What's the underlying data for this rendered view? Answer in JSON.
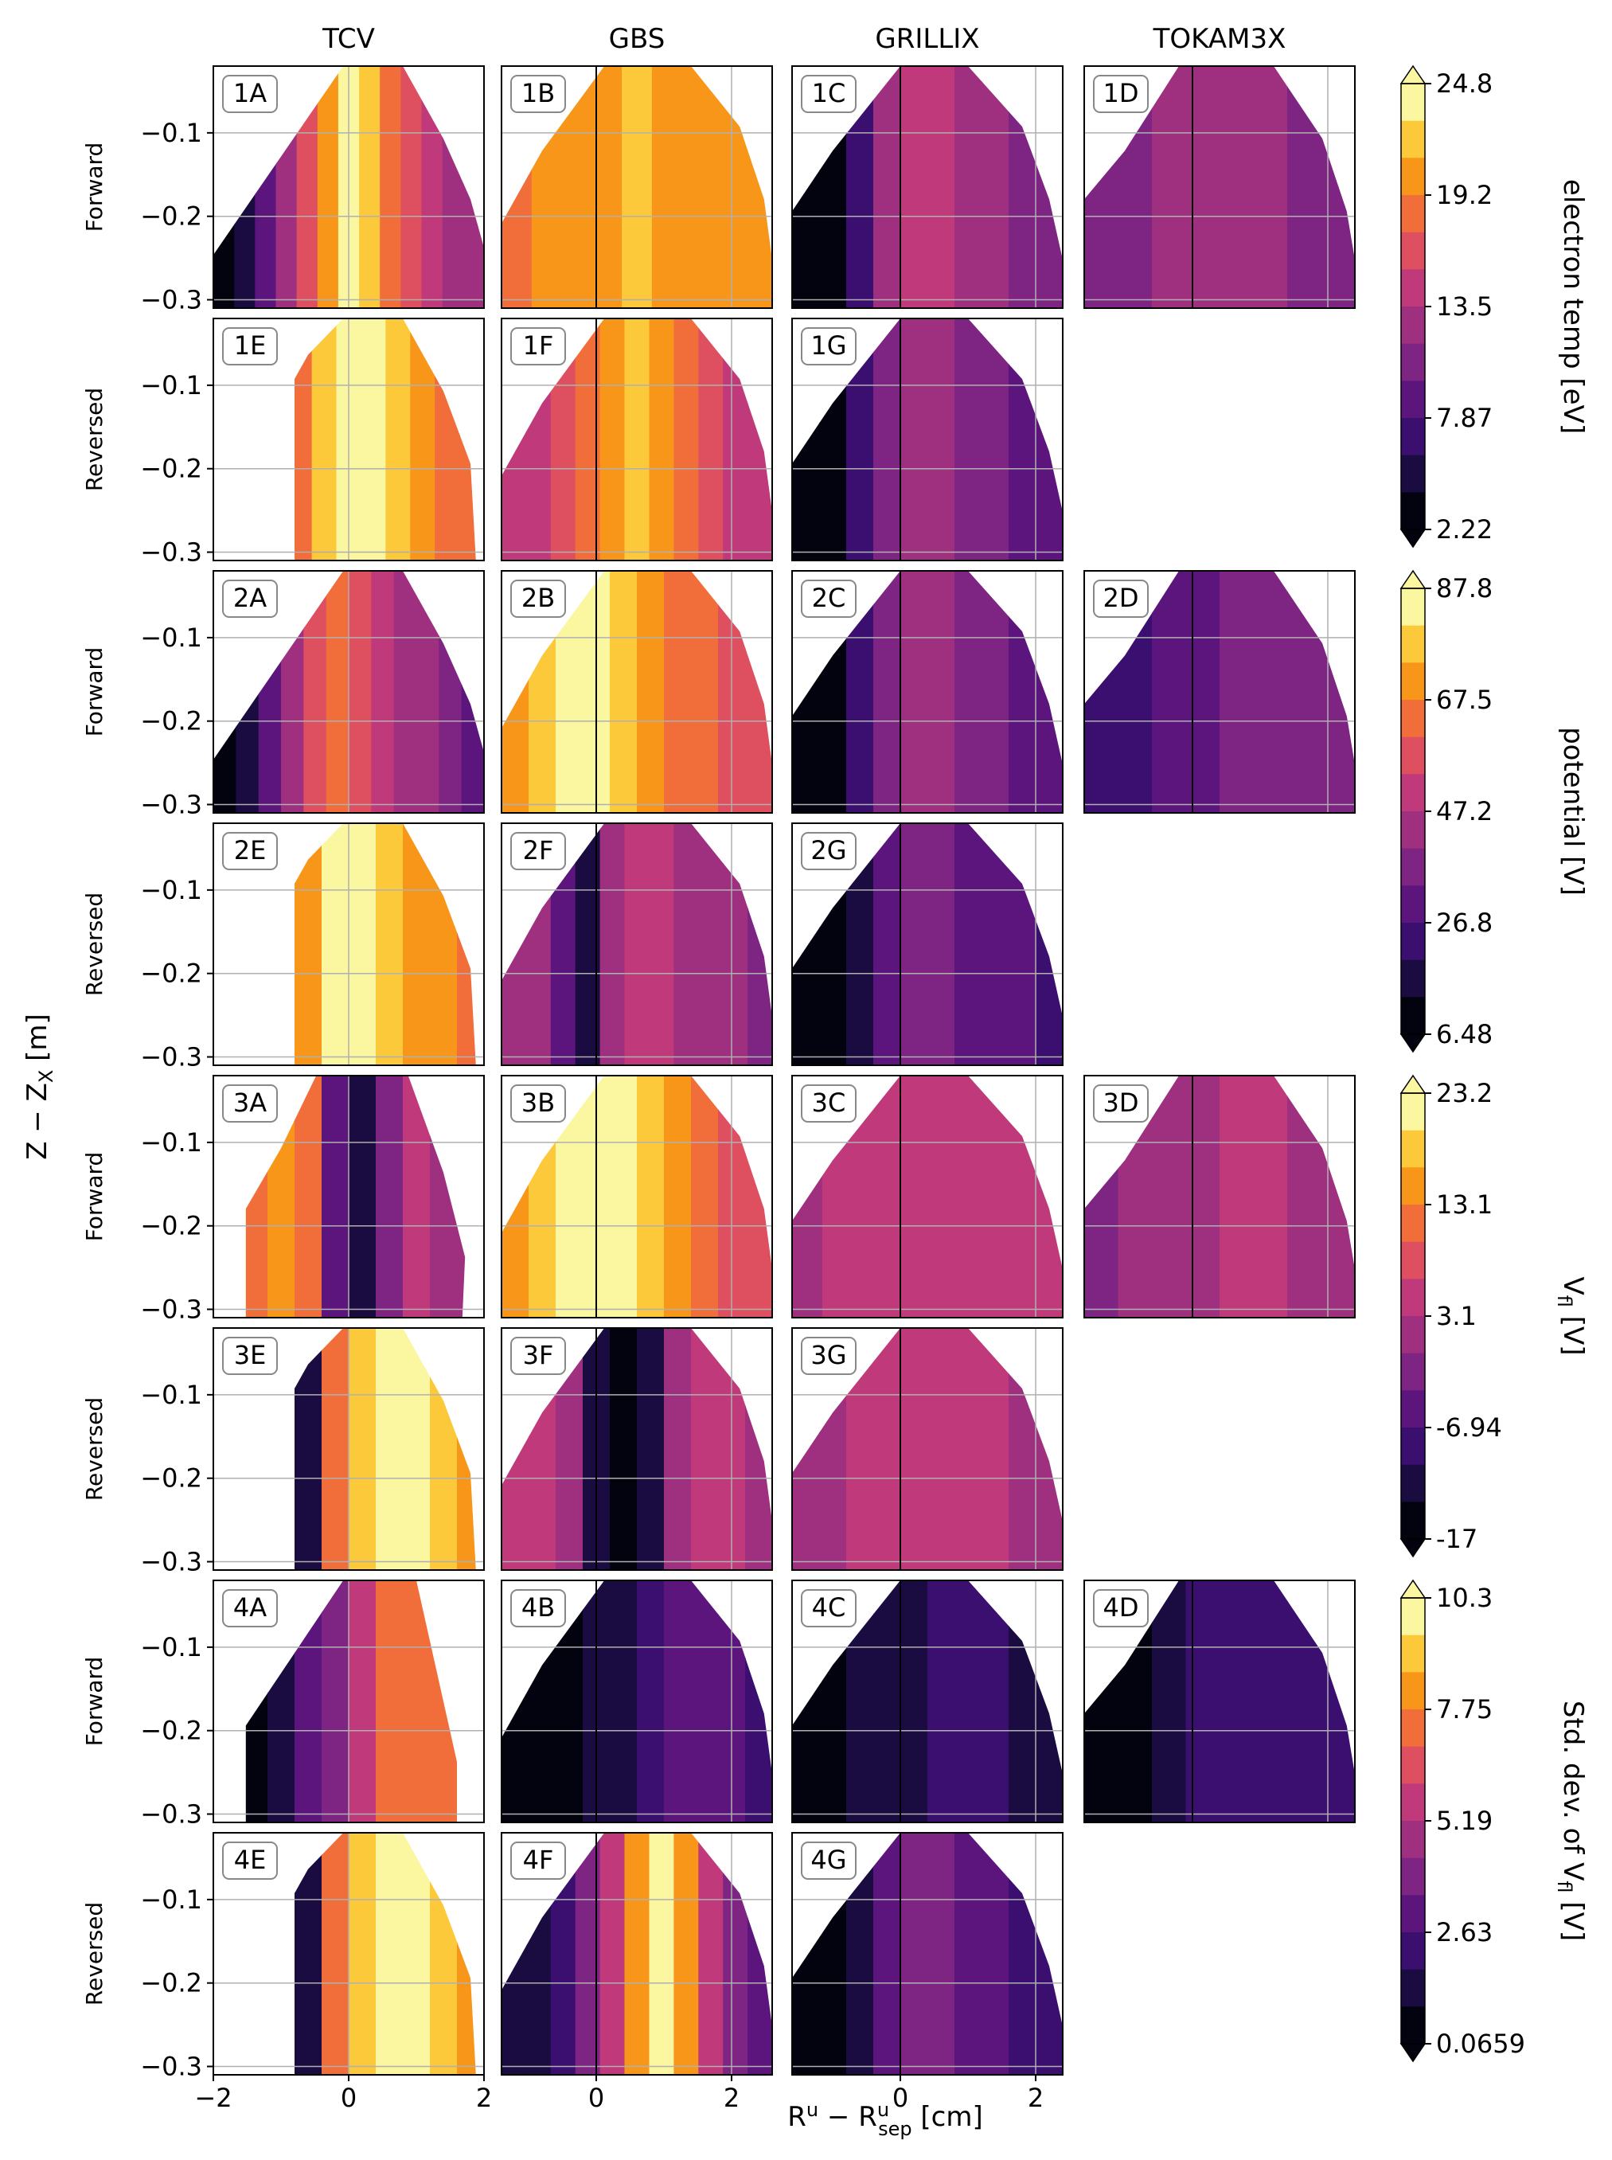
{
  "chart_data": {
    "type": "heatmap",
    "title": "",
    "xlabel": "R",
    "xlabel_sup": "u",
    "xlabel_minus": " − R",
    "xlabel_sub": "sep",
    "xlabel_sup2": "u",
    "xlabel_unit": " [cm]",
    "ylabel_main": "Z − Z",
    "ylabel_sub": "X",
    "ylabel_unit": " [m]",
    "columns": [
      "TCV",
      "GBS",
      "GRILLIX",
      "TOKAM3X"
    ],
    "row_labels": [
      "Forward",
      "Reversed",
      "Forward",
      "Reversed",
      "Forward",
      "Reversed",
      "Forward",
      "Reversed"
    ],
    "y_ticks": [
      "−0.1",
      "−0.2",
      "−0.3"
    ],
    "y_tick_values": [
      -0.1,
      -0.2,
      -0.3
    ],
    "ylim": [
      -0.31,
      -0.02
    ],
    "x_ticks": {
      "col0": {
        "labels": [
          "−2",
          "0",
          "2"
        ],
        "values": [
          -2,
          0,
          2
        ],
        "xlim": [
          -2.0,
          2.0
        ]
      },
      "col1": {
        "labels": [
          "0",
          "2"
        ],
        "values": [
          0,
          2
        ],
        "xlim": [
          -1.4,
          2.6
        ]
      },
      "col2": {
        "labels": [
          "0",
          "2"
        ],
        "values": [
          0,
          2
        ],
        "xlim": [
          -1.6,
          2.4
        ]
      }
    },
    "grid": true,
    "colormap": "inferno",
    "colorbars": [
      {
        "label": "electron temp [eV]",
        "ticks": [
          "24.8",
          "19.2",
          "13.5",
          "7.87",
          "2.22"
        ],
        "vmin": 2.22,
        "vmax": 24.8
      },
      {
        "label": "potential [V]",
        "ticks": [
          "87.8",
          "67.5",
          "47.2",
          "26.8",
          "6.48"
        ],
        "vmin": 6.48,
        "vmax": 87.8
      },
      {
        "label_main": "V",
        "label_sub": "fl",
        "label_unit": " [V]",
        "ticks": [
          "23.2",
          "13.1",
          "3.1",
          "-6.94",
          "-17"
        ],
        "vmin": -17,
        "vmax": 23.2
      },
      {
        "label_main": "Std. dev. of V",
        "label_sub": "fl",
        "label_unit": " [V]",
        "ticks": [
          "10.3",
          "7.75",
          "5.19",
          "2.63",
          "0.0659"
        ],
        "vmin": 0.0659,
        "vmax": 10.3
      }
    ],
    "panels": [
      [
        "1A",
        "1B",
        "1C",
        "1D"
      ],
      [
        "1E",
        "1F",
        "1G",
        ""
      ],
      [
        "2A",
        "2B",
        "2C",
        "2D"
      ],
      [
        "2E",
        "2F",
        "2G",
        ""
      ],
      [
        "3A",
        "3B",
        "3C",
        "3D"
      ],
      [
        "3E",
        "3F",
        "3G",
        ""
      ],
      [
        "4A",
        "4B",
        "4C",
        "4D"
      ],
      [
        "4E",
        "4F",
        "4G",
        ""
      ]
    ]
  }
}
